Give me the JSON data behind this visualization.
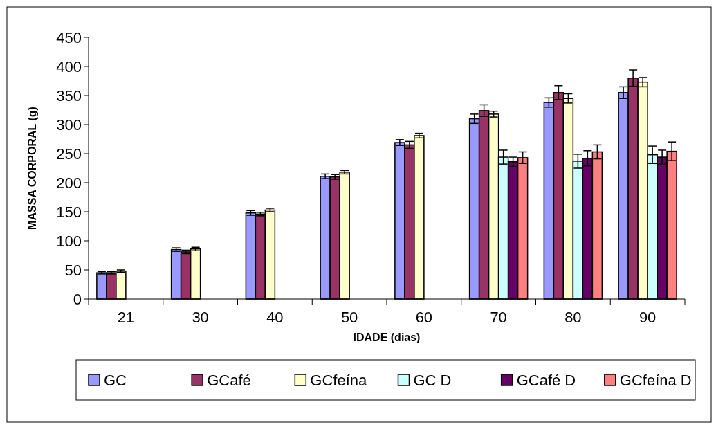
{
  "chart_data": {
    "type": "bar",
    "xlabel": "IDADE (dias)",
    "ylabel": "MASSA CORPORAL (g)",
    "categories": [
      "21",
      "30",
      "40",
      "50",
      "60",
      "70",
      "80",
      "90"
    ],
    "ylim": [
      0,
      450
    ],
    "yticks": [
      0,
      50,
      100,
      150,
      200,
      250,
      300,
      350,
      400,
      450
    ],
    "grid": false,
    "legend": "bottom",
    "series": [
      {
        "name": "GC",
        "color": "#9999ff",
        "values": [
          45,
          85,
          148,
          211,
          269,
          310,
          338,
          355
        ],
        "errors": [
          2,
          3,
          4,
          4,
          5,
          8,
          8,
          10
        ]
      },
      {
        "name": "GCafé",
        "color": "#993366",
        "values": [
          45,
          81,
          146,
          210,
          265,
          324,
          355,
          380
        ],
        "errors": [
          2,
          3,
          3,
          4,
          6,
          10,
          12,
          14
        ]
      },
      {
        "name": "GCfeína",
        "color": "#ffffcc",
        "values": [
          48,
          86,
          153,
          218,
          281,
          318,
          345,
          373
        ],
        "errors": [
          2,
          3,
          3,
          3,
          4,
          5,
          8,
          8
        ]
      },
      {
        "name": "GC D",
        "color": "#ccffff",
        "values": [
          null,
          null,
          null,
          null,
          null,
          244,
          237,
          248
        ],
        "errors": [
          null,
          null,
          null,
          null,
          null,
          12,
          12,
          15
        ]
      },
      {
        "name": "GCafé D",
        "color": "#660066",
        "values": [
          null,
          null,
          null,
          null,
          null,
          236,
          242,
          244
        ],
        "errors": [
          null,
          null,
          null,
          null,
          null,
          8,
          13,
          12
        ]
      },
      {
        "name": "GCfeína D",
        "color": "#ff8080",
        "values": [
          null,
          null,
          null,
          null,
          null,
          243,
          253,
          254
        ],
        "errors": [
          null,
          null,
          null,
          null,
          null,
          10,
          12,
          16
        ]
      }
    ]
  }
}
